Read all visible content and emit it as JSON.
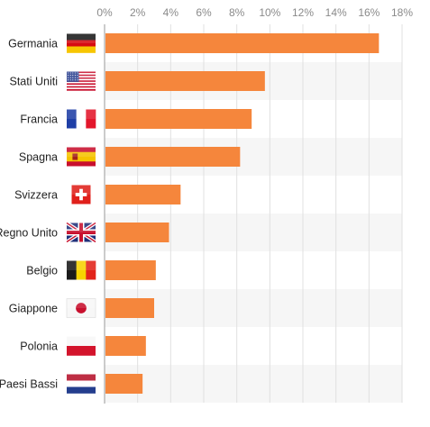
{
  "chart_data": {
    "type": "bar",
    "orientation": "horizontal",
    "title": "",
    "xlabel": "",
    "ylabel": "",
    "xlim": [
      0,
      18
    ],
    "ticks": [
      0,
      2,
      4,
      6,
      8,
      10,
      12,
      14,
      16,
      18
    ],
    "tick_labels": [
      "0%",
      "2%",
      "4%",
      "6%",
      "8%",
      "10%",
      "12%",
      "14%",
      "16%",
      "18%"
    ],
    "tick_position": "top",
    "grid": true,
    "legend": "none",
    "categories": [
      "Germania",
      "Stati Uniti",
      "Francia",
      "Spagna",
      "Svizzera",
      "Regno Unito",
      "Belgio",
      "Giappone",
      "Polonia",
      "Paesi Bassi"
    ],
    "flag_icons": [
      "flag-germany-icon",
      "flag-usa-icon",
      "flag-france-icon",
      "flag-spain-icon",
      "flag-switzerland-icon",
      "flag-uk-icon",
      "flag-belgium-icon",
      "flag-japan-icon",
      "flag-poland-icon",
      "flag-netherlands-icon"
    ],
    "values": [
      16.6,
      9.7,
      8.9,
      8.2,
      4.6,
      3.9,
      3.1,
      3.0,
      2.5,
      2.3
    ],
    "unit": "%"
  },
  "colors": {
    "bar": "#f5863c",
    "band": "#f6f6f6",
    "grid": "#e0e0e0",
    "axis": "#9a9a9a"
  }
}
